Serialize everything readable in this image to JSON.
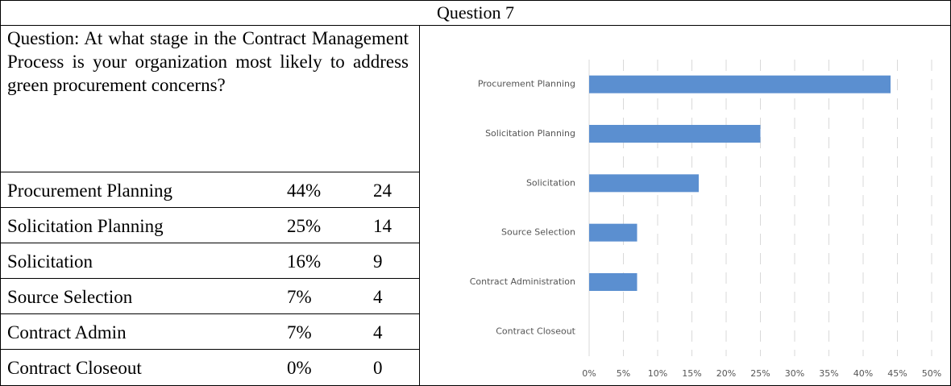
{
  "header": {
    "title": "Question 7"
  },
  "question": "Question: At what stage in the Contract Management Process is your organization most likely to address green procurement concerns?",
  "table": {
    "rows": [
      [
        "Procurement Planning",
        "44%",
        24
      ],
      [
        "Solicitation Planning",
        "25%",
        14
      ],
      [
        "Solicitation",
        "16%",
        9
      ],
      [
        "Source Selection",
        "7%",
        4
      ],
      [
        "Contract Admin",
        "7%",
        4
      ],
      [
        "Contract Closeout",
        "0%",
        0
      ]
    ]
  },
  "chart_data": {
    "type": "bar",
    "orientation": "horizontal",
    "categories": [
      "Procurement Planning",
      "Solicitation Planning",
      "Solicitation",
      "Source Selection",
      "Contract Administration",
      "Contract Closeout"
    ],
    "values": [
      44,
      25,
      16,
      7,
      7,
      0
    ],
    "color": "#5b8fd0",
    "xlim": [
      0,
      50
    ],
    "xticks": [
      {
        "value": 0,
        "label": "0%"
      },
      {
        "value": 5,
        "label": "5%"
      },
      {
        "value": 10,
        "label": "10%"
      },
      {
        "value": 15,
        "label": "15%"
      },
      {
        "value": 20,
        "label": "20%"
      },
      {
        "value": 25,
        "label": "25%"
      },
      {
        "value": 30,
        "label": "30%"
      },
      {
        "value": 35,
        "label": "35%"
      },
      {
        "value": 40,
        "label": "40%"
      },
      {
        "value": 45,
        "label": "45%"
      },
      {
        "value": 50,
        "label": "50%"
      }
    ],
    "grid": true
  }
}
